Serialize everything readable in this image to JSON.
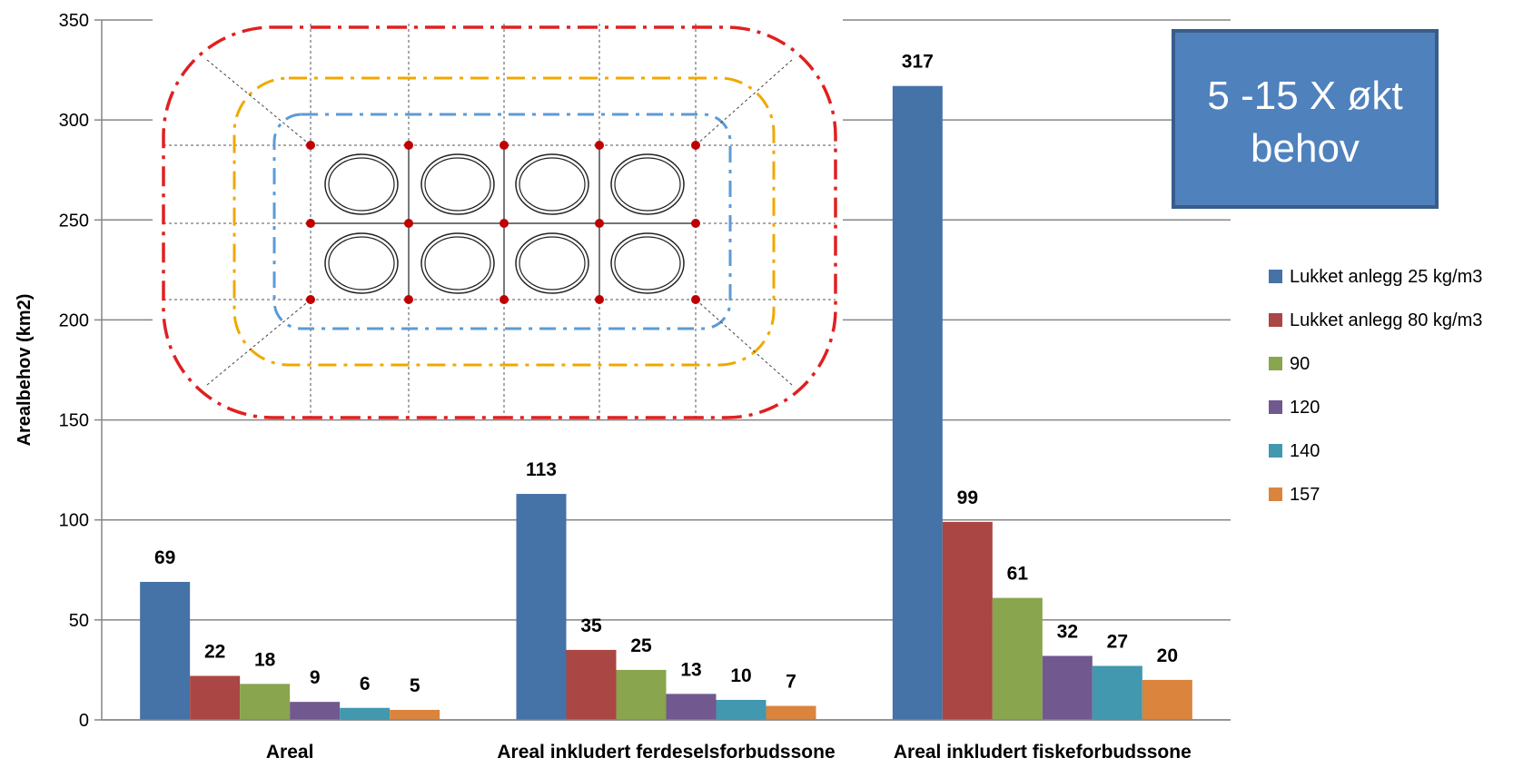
{
  "chart_data": {
    "type": "bar",
    "categories": [
      "Areal",
      "Areal inkludert ferdeselsforbudssone",
      "Areal inkludert fiskeforbudssone"
    ],
    "series": [
      {
        "name": "Lukket anlegg 25 kg/m3",
        "color": "#4572A7",
        "values": [
          69,
          113,
          317
        ]
      },
      {
        "name": "Lukket anlegg 80 kg/m3",
        "color": "#AA4643",
        "values": [
          22,
          35,
          99
        ]
      },
      {
        "name": "90",
        "color": "#89A54E",
        "values": [
          18,
          25,
          61
        ]
      },
      {
        "name": "120",
        "color": "#71588F",
        "values": [
          9,
          13,
          32
        ]
      },
      {
        "name": "140",
        "color": "#4198AF",
        "values": [
          6,
          10,
          27
        ]
      },
      {
        "name": "157",
        "color": "#DB843D",
        "values": [
          5,
          7,
          20
        ]
      }
    ],
    "ylabel": "Arealbehov (km2)",
    "ylim": [
      0,
      350
    ],
    "yticks": [
      0,
      50,
      100,
      150,
      200,
      250,
      300,
      350
    ],
    "grid": true,
    "legend_position": "right",
    "data_labels": true
  },
  "callout": {
    "text_line1": "5 -15 X økt",
    "text_line2": "behov",
    "fill": "#4F81BD",
    "border": "#385D8A"
  },
  "diagram": {
    "description_icons": "cage-layout-diagram",
    "zone_colors": {
      "outer": "#E02020",
      "middle": "#F0A800",
      "inner": "#5B9BD5",
      "mooring_point": "#C00000"
    }
  }
}
